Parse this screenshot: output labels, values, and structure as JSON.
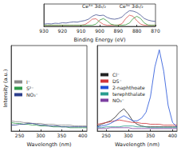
{
  "chart_data": [
    {
      "type": "line",
      "xlabel": "Binding Energy (eV)",
      "x": [
        930,
        928,
        926,
        924,
        922,
        920,
        918,
        916,
        914,
        912,
        910,
        908,
        906,
        904,
        902,
        900,
        898,
        896,
        894,
        892,
        890,
        888,
        886,
        884,
        882,
        880,
        878,
        876,
        874,
        872,
        870
      ],
      "xlim": [
        930,
        870
      ],
      "xticks": [
        930,
        920,
        910,
        900,
        890,
        880,
        870
      ],
      "ylim": [
        10,
        110
      ],
      "tick_labels": "x",
      "grid": false,
      "annotations": [
        {
          "text": "Ce³⁺ 3d₃/₂",
          "x": 903,
          "y": 100
        },
        {
          "text": "Ce³⁺ 3d₅/₂",
          "x": 883,
          "y": 100
        }
      ],
      "series": [
        {
          "color": "#44508f",
          "values": [
            20,
            22,
            21,
            24,
            23,
            26,
            25,
            28,
            30,
            29,
            33,
            36,
            42,
            55,
            62,
            58,
            60,
            50,
            44,
            42,
            45,
            52,
            68,
            80,
            78,
            72,
            60,
            45,
            38,
            34,
            32
          ]
        },
        {
          "color": "#d9534f",
          "values": [
            15,
            15,
            15,
            15,
            15,
            15,
            15,
            15,
            15,
            15,
            15,
            18,
            28,
            42,
            44,
            30,
            19,
            15,
            15,
            15,
            16,
            22,
            45,
            60,
            55,
            35,
            20,
            15,
            15,
            15,
            15
          ]
        },
        {
          "color": "#3c9a3c",
          "values": [
            15,
            15,
            15,
            15,
            15,
            15,
            15,
            15,
            15,
            15,
            15,
            15,
            15,
            15,
            20,
            38,
            45,
            34,
            20,
            16,
            15,
            15,
            17,
            25,
            45,
            55,
            45,
            25,
            16,
            15,
            15
          ]
        }
      ]
    },
    {
      "type": "line",
      "xlabel": "Wavelength (nm)",
      "ylabel": "Intensity (a.u.)",
      "x": [
        230,
        240,
        250,
        260,
        270,
        280,
        290,
        300,
        310,
        320,
        330,
        340,
        350,
        360,
        370,
        380,
        390,
        400,
        410
      ],
      "xlim": [
        230,
        410
      ],
      "xticks": [
        250,
        300,
        350,
        400
      ],
      "ylim": [
        0,
        100
      ],
      "tick_labels": "x",
      "grid": false,
      "legend": "center left",
      "series": [
        {
          "name": "I⁻",
          "color": "#888888",
          "values": [
            12,
            11,
            11,
            10,
            10,
            9,
            9,
            9,
            8,
            8,
            8,
            7,
            7,
            7,
            7,
            6,
            6,
            6,
            6
          ]
        },
        {
          "name": "S²⁻",
          "color": "#2e9a4a",
          "values": [
            10,
            9,
            9,
            8,
            8,
            7,
            7,
            6,
            6,
            6,
            5,
            5,
            5,
            5,
            4,
            4,
            4,
            4,
            4
          ]
        },
        {
          "name": "NO₃⁻",
          "color": "#2c3e8c",
          "values": [
            7,
            7,
            8,
            8,
            9,
            9,
            8,
            7,
            7,
            6,
            6,
            6,
            5,
            5,
            5,
            5,
            5,
            5,
            5
          ]
        }
      ]
    },
    {
      "type": "line",
      "xlabel": "Wavelength (nm)",
      "x": [
        230,
        240,
        250,
        260,
        270,
        280,
        290,
        300,
        310,
        320,
        330,
        340,
        350,
        360,
        370,
        380,
        390,
        400,
        410
      ],
      "xlim": [
        230,
        410
      ],
      "xticks": [
        250,
        300,
        350,
        400
      ],
      "ylim": [
        0,
        100
      ],
      "tick_labels": "x",
      "grid": false,
      "legend": "center left",
      "series": [
        {
          "name": "Cl⁻",
          "color": "#222222",
          "values": [
            6,
            8,
            10,
            12,
            16,
            22,
            26,
            20,
            12,
            8,
            6,
            5,
            5,
            5,
            5,
            5,
            5,
            5,
            5
          ]
        },
        {
          "name": "DS⁻",
          "color": "#d0343a",
          "values": [
            8,
            9,
            10,
            11,
            12,
            13,
            12,
            11,
            10,
            10,
            9,
            9,
            8,
            8,
            8,
            7,
            7,
            7,
            7
          ]
        },
        {
          "name": "2-naphthoate",
          "color": "#1f4fd8",
          "values": [
            5,
            6,
            7,
            9,
            12,
            15,
            18,
            15,
            12,
            12,
            15,
            22,
            40,
            75,
            95,
            70,
            30,
            10,
            5
          ]
        },
        {
          "name": "terephthalate",
          "color": "#2a9d8f",
          "values": [
            4,
            4,
            5,
            5,
            5,
            5,
            6,
            6,
            6,
            5,
            5,
            5,
            4,
            4,
            4,
            4,
            4,
            4,
            4
          ]
        },
        {
          "name": "NO₃⁻",
          "color": "#7b3fa0",
          "values": [
            3,
            3,
            3,
            4,
            4,
            4,
            4,
            4,
            3,
            3,
            3,
            3,
            3,
            3,
            3,
            3,
            3,
            3,
            3
          ]
        }
      ]
    }
  ]
}
